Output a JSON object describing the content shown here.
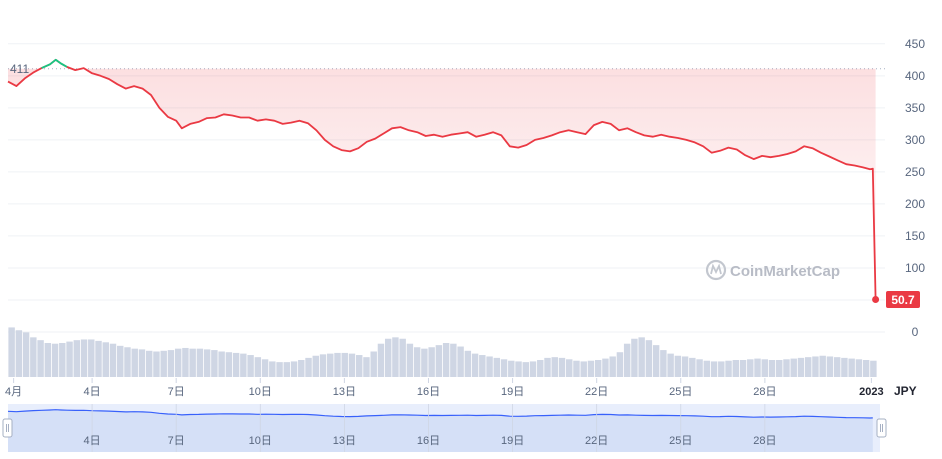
{
  "chart_data": {
    "type": "line",
    "currency": "JPY",
    "y_ticks": [
      450,
      400,
      350,
      300,
      250,
      200,
      150,
      100,
      50,
      0
    ],
    "y_tick_labels": [
      "450",
      "400",
      "350",
      "300",
      "250",
      "200",
      "150",
      "100",
      "",
      "0"
    ],
    "ylim": [
      0,
      470
    ],
    "x_tick_labels": [
      "4月",
      "4日",
      "7日",
      "10日",
      "13日",
      "16日",
      "19日",
      "22日",
      "25日",
      "28日",
      "2023"
    ],
    "navigator_tick_labels": [
      "4日",
      "7日",
      "10日",
      "13日",
      "16日",
      "19日",
      "22日",
      "25日",
      "28日"
    ],
    "reference_label": "411",
    "reference_value": 411,
    "last_value_label": "50.7",
    "last_value": 50.7,
    "series": [
      {
        "points": [
          [
            0,
            391
          ],
          [
            0.3,
            384
          ],
          [
            0.6,
            396
          ],
          [
            0.9,
            405
          ],
          [
            1.2,
            412
          ],
          [
            1.5,
            418
          ],
          [
            1.7,
            425
          ],
          [
            1.9,
            419
          ],
          [
            2.1,
            414
          ],
          [
            2.4,
            409
          ],
          [
            2.7,
            412
          ],
          [
            3.0,
            404
          ],
          [
            3.3,
            400
          ],
          [
            3.6,
            395
          ],
          [
            3.9,
            387
          ],
          [
            4.2,
            380
          ],
          [
            4.5,
            384
          ],
          [
            4.8,
            380
          ],
          [
            5.1,
            370
          ],
          [
            5.4,
            350
          ],
          [
            5.7,
            336
          ],
          [
            6.0,
            330
          ],
          [
            6.2,
            318
          ],
          [
            6.5,
            325
          ],
          [
            6.8,
            328
          ],
          [
            7.1,
            334
          ],
          [
            7.4,
            335
          ],
          [
            7.7,
            340
          ],
          [
            8.0,
            338
          ],
          [
            8.3,
            335
          ],
          [
            8.6,
            335
          ],
          [
            8.9,
            330
          ],
          [
            9.2,
            332
          ],
          [
            9.5,
            330
          ],
          [
            9.8,
            325
          ],
          [
            10.1,
            327
          ],
          [
            10.4,
            330
          ],
          [
            10.7,
            326
          ],
          [
            11.0,
            315
          ],
          [
            11.3,
            300
          ],
          [
            11.6,
            290
          ],
          [
            11.9,
            284
          ],
          [
            12.2,
            282
          ],
          [
            12.5,
            287
          ],
          [
            12.8,
            297
          ],
          [
            13.1,
            302
          ],
          [
            13.4,
            310
          ],
          [
            13.7,
            318
          ],
          [
            14.0,
            320
          ],
          [
            14.3,
            315
          ],
          [
            14.6,
            312
          ],
          [
            14.9,
            306
          ],
          [
            15.2,
            308
          ],
          [
            15.5,
            305
          ],
          [
            15.8,
            308
          ],
          [
            16.1,
            310
          ],
          [
            16.4,
            312
          ],
          [
            16.7,
            305
          ],
          [
            17.0,
            308
          ],
          [
            17.3,
            312
          ],
          [
            17.6,
            307
          ],
          [
            17.9,
            290
          ],
          [
            18.2,
            288
          ],
          [
            18.5,
            292
          ],
          [
            18.8,
            300
          ],
          [
            19.1,
            303
          ],
          [
            19.4,
            307
          ],
          [
            19.7,
            312
          ],
          [
            20.0,
            315
          ],
          [
            20.3,
            312
          ],
          [
            20.6,
            309
          ],
          [
            20.9,
            323
          ],
          [
            21.2,
            328
          ],
          [
            21.5,
            325
          ],
          [
            21.8,
            315
          ],
          [
            22.1,
            318
          ],
          [
            22.4,
            312
          ],
          [
            22.7,
            307
          ],
          [
            23.0,
            305
          ],
          [
            23.3,
            308
          ],
          [
            23.6,
            305
          ],
          [
            23.9,
            303
          ],
          [
            24.2,
            300
          ],
          [
            24.5,
            296
          ],
          [
            24.8,
            290
          ],
          [
            25.1,
            280
          ],
          [
            25.4,
            283
          ],
          [
            25.7,
            288
          ],
          [
            26.0,
            285
          ],
          [
            26.3,
            276
          ],
          [
            26.6,
            270
          ],
          [
            26.9,
            275
          ],
          [
            27.2,
            273
          ],
          [
            27.5,
            275
          ],
          [
            27.8,
            278
          ],
          [
            28.1,
            282
          ],
          [
            28.4,
            290
          ],
          [
            28.7,
            287
          ],
          [
            29.0,
            280
          ],
          [
            29.3,
            274
          ],
          [
            29.6,
            268
          ],
          [
            29.9,
            262
          ],
          [
            30.2,
            260
          ],
          [
            30.5,
            257
          ],
          [
            30.75,
            254
          ],
          [
            30.85,
            255
          ],
          [
            30.95,
            50.7
          ]
        ]
      }
    ],
    "volume": [
      70,
      66,
      63,
      56,
      52,
      48,
      47,
      48,
      50,
      52,
      53,
      53,
      51,
      49,
      47,
      44,
      42,
      40,
      39,
      37,
      36,
      37,
      38,
      40,
      41,
      40,
      40,
      39,
      38,
      36,
      35,
      34,
      33,
      31,
      28,
      25,
      22,
      21,
      21,
      22,
      24,
      27,
      30,
      32,
      33,
      34,
      34,
      33,
      31,
      28,
      36,
      47,
      54,
      56,
      54,
      47,
      42,
      40,
      42,
      45,
      48,
      47,
      43,
      37,
      33,
      31,
      29,
      27,
      25,
      23,
      22,
      21,
      22,
      24,
      27,
      28,
      27,
      25,
      23,
      22,
      23,
      24,
      26,
      29,
      35,
      47,
      54,
      56,
      52,
      45,
      38,
      33,
      30,
      29,
      27,
      25,
      23,
      22,
      22,
      23,
      24,
      24,
      25,
      26,
      25,
      24,
      24,
      25,
      26,
      27,
      28,
      29,
      30,
      29,
      28,
      27,
      26,
      25,
      24,
      23
    ],
    "x_days_range": [
      0,
      31
    ],
    "watermark": "CoinMarketCap"
  }
}
